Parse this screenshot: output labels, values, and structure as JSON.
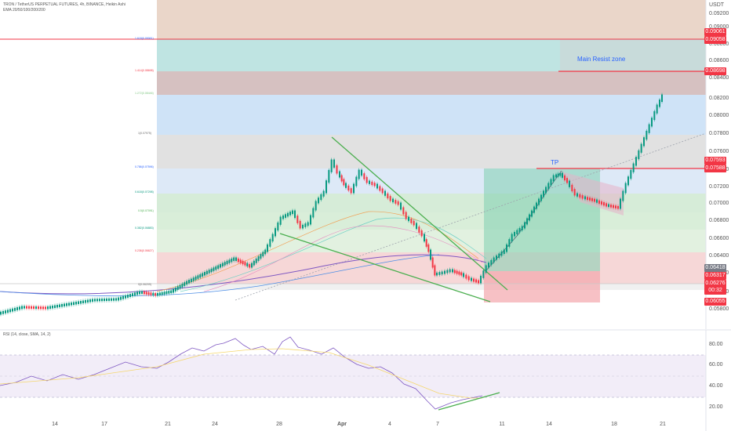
{
  "header": {
    "symbol_line": "TRON / TetherUS PERPETUAL FUTURES, 4h, BINANCE, Heikin Ashi",
    "ema_line": "EMA 20/50/100/200/200"
  },
  "price_axis": {
    "currency": "USDT",
    "ticks": [
      "0.09200",
      "0.09000",
      "0.08800",
      "0.08600",
      "0.08400",
      "0.08200",
      "0.08000",
      "0.07800",
      "0.07600",
      "0.07400",
      "0.07200",
      "0.07000",
      "0.06800",
      "0.06600",
      "0.06400",
      "0.06200",
      "0.06000",
      "0.05800"
    ],
    "tags": [
      {
        "label": "0.09061",
        "color": "#f23645"
      },
      {
        "label": "0.09058",
        "color": "#f23645"
      },
      {
        "label": "0.08698",
        "color": "#f23645"
      },
      {
        "label": "0.07593",
        "color": "#f23645"
      },
      {
        "label": "0.07588",
        "color": "#f23645"
      },
      {
        "label": "0.06418",
        "color": "#787b86"
      },
      {
        "label": "0.06317",
        "color": "#f23645"
      },
      {
        "label": "0.06276",
        "color": "#f23645"
      },
      {
        "label": "00:32",
        "color": "#f23645"
      },
      {
        "label": "0.06055",
        "color": "#f23645"
      }
    ]
  },
  "annotations": {
    "resist_label": "Main Resist zone",
    "tp_label": "TP"
  },
  "fib_levels": [
    {
      "label": "1.618(0.09061)"
    },
    {
      "label": "1.414(0.08698)"
    },
    {
      "label": "1.272(0.08446)"
    },
    {
      "label": "1(0.07975)"
    },
    {
      "label": "0.786(0.07596)"
    },
    {
      "label": "0.618(0.07298)"
    },
    {
      "label": "0.5(0.07091)"
    },
    {
      "label": "0.382(0.06883)"
    },
    {
      "label": "0.236(0.06627)"
    },
    {
      "label": "0(0.06209)"
    }
  ],
  "rsi": {
    "title": "RSI (14, close, SMA, 14, 2)",
    "ticks": [
      "80.00",
      "60.00",
      "40.00",
      "20.00"
    ]
  },
  "time_axis": {
    "labels": [
      "14",
      "17",
      "21",
      "24",
      "28",
      "Apr",
      "4",
      "7",
      "11",
      "14",
      "18",
      "21"
    ]
  }
}
